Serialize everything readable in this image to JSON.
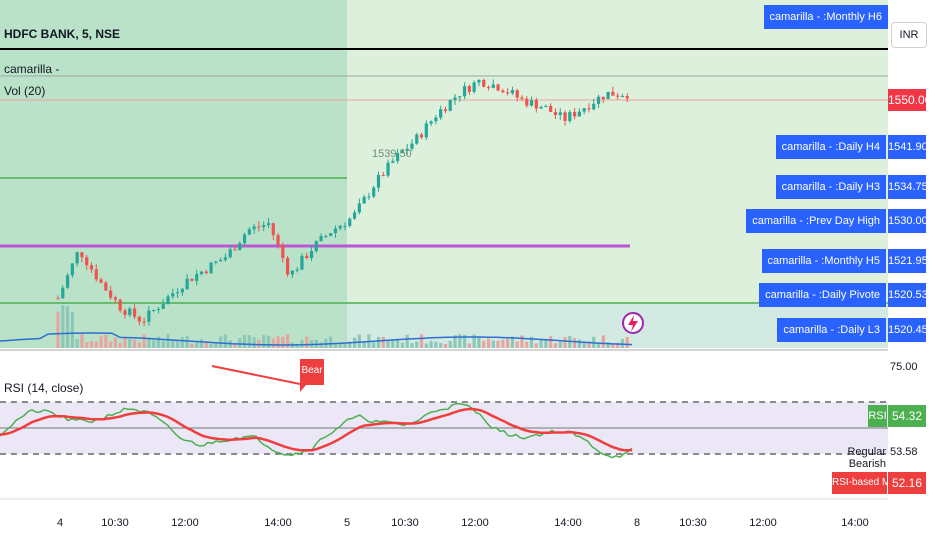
{
  "header": {
    "symbol": "HDFC BANK, 5, NSE",
    "indicator_name": "camarilla -",
    "volume_label": "Vol (20)",
    "currency": "INR"
  },
  "colors": {
    "session1_bg": "#b9e2c9",
    "session2_bg": "#dcf0db",
    "band_bg": "#ebe7f6",
    "candle_up": "#26a69a",
    "candle_down": "#ef5350",
    "level_green": "#4caf50",
    "level_purple": "#ba55d3",
    "label_blue": "#2962ff",
    "price_red": "#f23645",
    "rsi_green": "#4caf50",
    "rsi_ma_red": "#ef3e3e",
    "volume_ma": "#2c6fd1"
  },
  "level_labels": [
    {
      "name": "camarilla - :Monthly H6",
      "value": ""
    },
    {
      "name": "camarilla - :Daily H4",
      "value": "1541.90"
    },
    {
      "name": "camarilla - :Daily H3",
      "value": "1534.75"
    },
    {
      "name": "camarilla - :Prev Day High",
      "value": "1530.00"
    },
    {
      "name": "camarilla - :Monthly H5",
      "value": "1521.95"
    },
    {
      "name": "camarilla - :Daily Pivote",
      "value": "1520.53"
    },
    {
      "name": "camarilla - :Daily L3",
      "value": "1520.45"
    }
  ],
  "current_price": "1550.00",
  "inline_price_text": "1539.50",
  "rsi_panel": {
    "title": "RSI (14, close)",
    "upper_value": "75.00",
    "rsi_tag": "RSI",
    "rsi_value": "54.32",
    "divergence_tag": "Regular Bearish",
    "divergence_value": "53.58",
    "ma_tag": "RSI-based MA",
    "ma_value": "52.16",
    "bear_label": "Bear"
  },
  "chart_data": [
    {
      "type": "candlestick",
      "x_ticks": [
        "4",
        "10:30",
        "12:00",
        "14:00",
        "5",
        "10:30",
        "12:00",
        "14:00",
        "8",
        "10:30",
        "12:00",
        "14:00"
      ],
      "y_marks": [
        1550.0,
        1541.9,
        1534.75,
        1530.0,
        1521.95,
        1520.53,
        1520.45
      ],
      "approx_close_path": [
        1519.5,
        1527,
        1522,
        1518,
        1516,
        1519,
        1522,
        1524,
        1526,
        1530,
        1531,
        1523,
        1527,
        1530,
        1532,
        1537,
        1541,
        1544,
        1548,
        1551,
        1553,
        1552,
        1550,
        1549,
        1547,
        1549,
        1551,
        1551
      ],
      "current_price": 1550.0
    },
    {
      "type": "line",
      "series": [
        {
          "name": "RSI",
          "last": 54.32
        },
        {
          "name": "RSI-based MA",
          "last": 52.16
        }
      ],
      "levels": [
        75.0,
        53.58
      ]
    }
  ]
}
